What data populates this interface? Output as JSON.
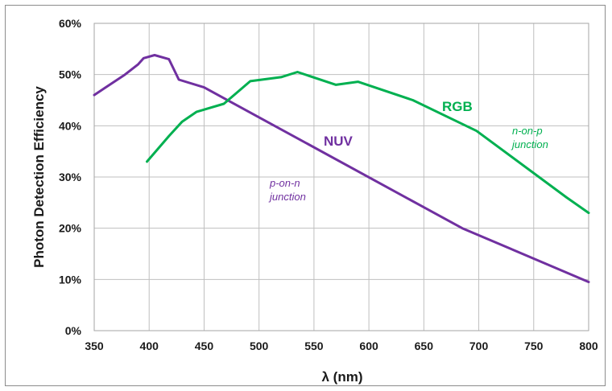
{
  "chart_data": {
    "type": "line",
    "xlabel": "λ (nm)",
    "ylabel": "Photon Detection Efficiency",
    "xlim": [
      350,
      800
    ],
    "ylim": [
      0,
      60
    ],
    "x_ticks": [
      "350",
      "400",
      "450",
      "500",
      "550",
      "600",
      "650",
      "700",
      "750",
      "800"
    ],
    "y_ticks": [
      "0%",
      "10%",
      "20%",
      "30%",
      "40%",
      "50%",
      "60%"
    ],
    "grid": true,
    "series": [
      {
        "name": "NUV",
        "color": "#7030a0",
        "x": [
          350,
          378,
          390,
          395,
          405,
          418,
          427,
          450,
          685,
          800
        ],
        "y": [
          46.0,
          50.0,
          52.0,
          53.2,
          53.8,
          53.0,
          49.0,
          47.5,
          20.0,
          9.5
        ]
      },
      {
        "name": "RGB",
        "color": "#00b050",
        "x": [
          398,
          418,
          430,
          443,
          468,
          492,
          520,
          535,
          570,
          590,
          640,
          698,
          780,
          800
        ],
        "y": [
          33.0,
          38.0,
          40.8,
          42.7,
          44.3,
          48.7,
          49.5,
          50.5,
          48.0,
          48.6,
          45.0,
          39.0,
          26.0,
          23.0
        ]
      }
    ],
    "annotations": {
      "nuv_label": "NUV",
      "rgb_label": "RGB",
      "nuv_note_line1": "p-on-n",
      "nuv_note_line2": "junction",
      "rgb_note_line1": "n-on-p",
      "rgb_note_line2": "junction"
    }
  }
}
